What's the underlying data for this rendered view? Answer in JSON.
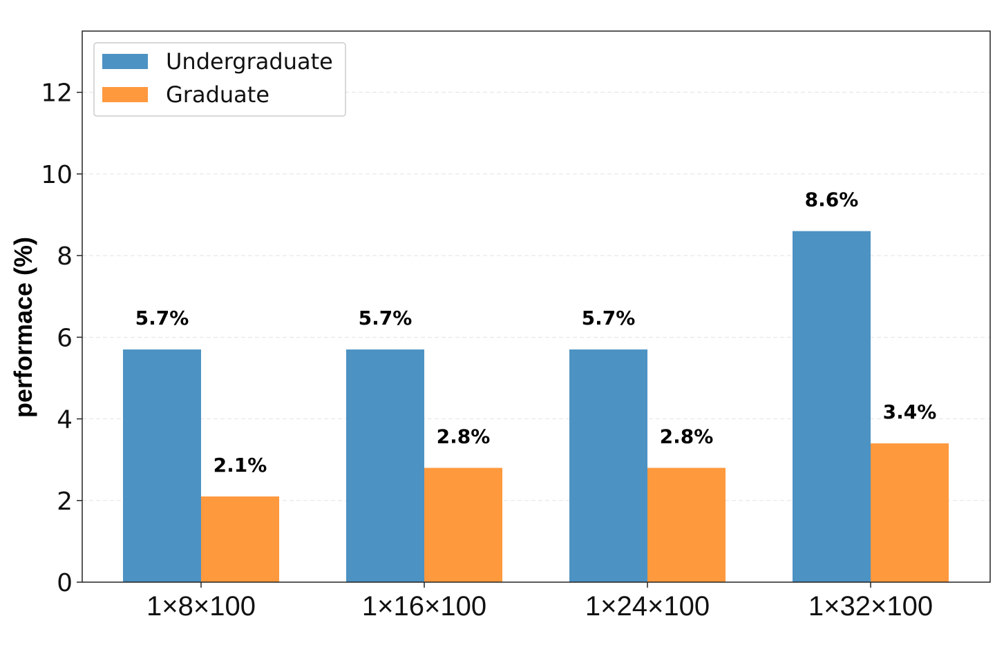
{
  "chart_data": {
    "type": "bar",
    "title": "",
    "xlabel": "",
    "ylabel": "performace (%)",
    "ylim": [
      0,
      13.5
    ],
    "yticks": [
      0,
      2,
      4,
      6,
      8,
      10,
      12
    ],
    "grid": true,
    "legend_position": "top-left",
    "categories": [
      "1×8×100",
      "1×16×100",
      "1×24×100",
      "1×32×100"
    ],
    "series": [
      {
        "name": "Undergraduate",
        "color": "#4c92c3",
        "values": [
          5.7,
          5.7,
          5.7,
          8.6
        ],
        "labels": [
          "5.7%",
          "5.7%",
          "5.7%",
          "8.6%"
        ]
      },
      {
        "name": "Graduate",
        "color": "#ff993e",
        "values": [
          2.1,
          2.8,
          2.8,
          3.4
        ],
        "labels": [
          "2.1%",
          "2.8%",
          "2.8%",
          "3.4%"
        ]
      }
    ]
  }
}
